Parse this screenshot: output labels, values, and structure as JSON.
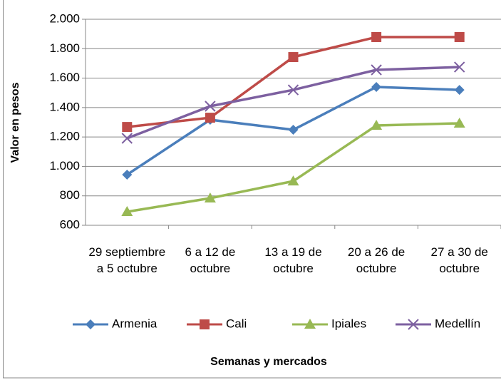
{
  "chart_data": {
    "type": "line",
    "y_label": "Valor en pesos",
    "x_label": "Semanas y mercados",
    "categories": [
      "29 septiembre a 5 octubre",
      "6 a 12 de octubre",
      "13 a 19 de octubre",
      "20 a 26 de octubre",
      "27 a 30 de octubre"
    ],
    "series": [
      {
        "name": "Armenia",
        "color": "#4a7ebb",
        "marker": "diamond",
        "values": [
          944,
          1317,
          1249,
          1540,
          1520
        ]
      },
      {
        "name": "Cali",
        "color": "#be4b48",
        "marker": "square",
        "values": [
          1268,
          1331,
          1743,
          1879,
          1879
        ]
      },
      {
        "name": "Ipiales",
        "color": "#98b954",
        "marker": "triangle",
        "values": [
          692,
          784,
          900,
          1278,
          1293
        ]
      },
      {
        "name": "Medellín",
        "color": "#7d60a0",
        "marker": "x",
        "values": [
          1191,
          1409,
          1520,
          1656,
          1675
        ]
      }
    ],
    "ylim": [
      600,
      2000
    ],
    "yticks": [
      600,
      800,
      {
        "value": 1000,
        "label": "1.000"
      },
      {
        "value": 1200,
        "label": "1.200"
      },
      {
        "value": 1400,
        "label": "1.400"
      },
      {
        "value": 1600,
        "label": "1.600"
      },
      {
        "value": 1800,
        "label": "1.800"
      },
      {
        "value": 2000,
        "label": "2.000"
      }
    ],
    "grid": true
  }
}
